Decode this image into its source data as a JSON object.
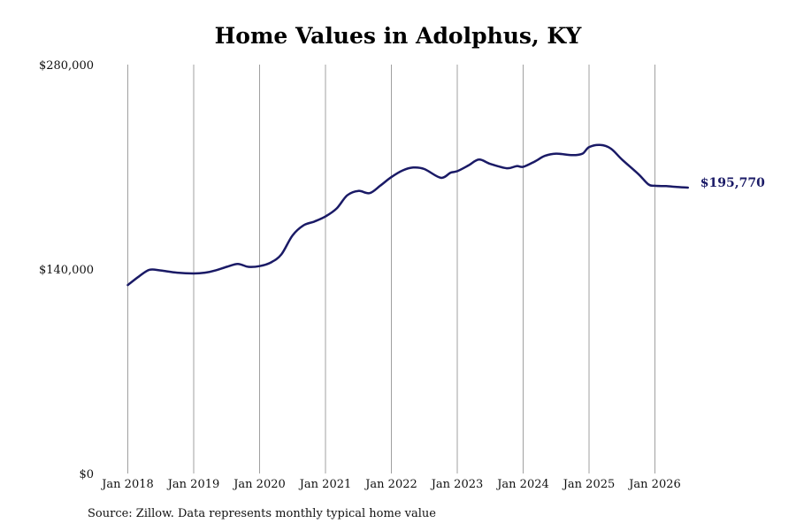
{
  "chart_data": {
    "type": "line",
    "title": "Home Values in Adolphus, KY",
    "source": "Source: Zillow. Data represents monthly typical home value",
    "line_color": "#1a1a66",
    "grid_color": "#a0a0a0",
    "ylim": [
      0,
      280000
    ],
    "y_ticks": [
      {
        "value": 0,
        "label": "$0"
      },
      {
        "value": 140000,
        "label": "$140,000"
      },
      {
        "value": 280000,
        "label": "$280,000"
      }
    ],
    "x_ticks": [
      {
        "value": 2018,
        "label": "Jan 2018"
      },
      {
        "value": 2019,
        "label": "Jan 2019"
      },
      {
        "value": 2020,
        "label": "Jan 2020"
      },
      {
        "value": 2021,
        "label": "Jan 2021"
      },
      {
        "value": 2022,
        "label": "Jan 2022"
      },
      {
        "value": 2023,
        "label": "Jan 2023"
      },
      {
        "value": 2024,
        "label": "Jan 2024"
      },
      {
        "value": 2025,
        "label": "Jan 2025"
      },
      {
        "value": 2026,
        "label": "Jan 2026"
      }
    ],
    "end_label": "$195,770",
    "series": [
      {
        "x": [
          2018.0,
          2018.17,
          2018.33,
          2018.5,
          2018.75,
          2019.0,
          2019.17,
          2019.33,
          2019.5,
          2019.67,
          2019.83,
          2020.0,
          2020.17,
          2020.33,
          2020.5,
          2020.67,
          2020.83,
          2021.0,
          2021.17,
          2021.33,
          2021.5,
          2021.67,
          2021.83,
          2022.0,
          2022.17,
          2022.33,
          2022.5,
          2022.75,
          2022.9,
          2023.0,
          2023.17,
          2023.33,
          2023.5,
          2023.75,
          2023.9,
          2024.0,
          2024.17,
          2024.33,
          2024.5,
          2024.75,
          2024.9,
          2025.0,
          2025.17,
          2025.33,
          2025.5,
          2025.75,
          2025.9,
          2026.0,
          2026.17,
          2026.33,
          2026.5
        ],
        "y": [
          129000,
          135000,
          139500,
          139000,
          137500,
          137000,
          137500,
          139000,
          141500,
          143500,
          141500,
          142000,
          144500,
          150000,
          163000,
          170000,
          172500,
          176000,
          181500,
          190500,
          193500,
          192000,
          197000,
          203000,
          207500,
          209500,
          208500,
          202500,
          206000,
          207000,
          211000,
          215000,
          212000,
          209000,
          210500,
          210000,
          213500,
          217500,
          219000,
          218000,
          219000,
          223500,
          225000,
          222500,
          215000,
          205000,
          198000,
          197000,
          196800,
          196200,
          195770
        ]
      }
    ]
  }
}
